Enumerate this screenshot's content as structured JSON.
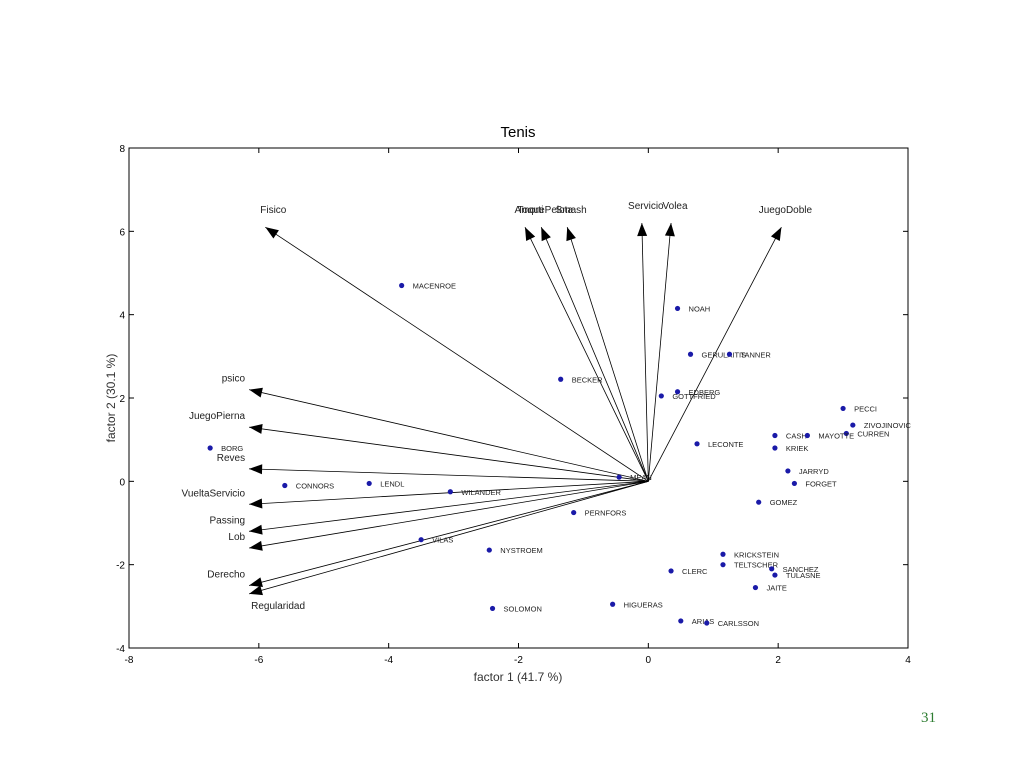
{
  "page_number": "31",
  "colors": {
    "points": "#1a1aa8",
    "arrows": "#000000",
    "page_number": "#2e7d32"
  },
  "chart_data": {
    "type": "scatter",
    "title": "Tenis",
    "xlabel": "factor 1 (41.7 %)",
    "ylabel": "factor 2 (30.1 %)",
    "xlim": [
      -8,
      4
    ],
    "ylim": [
      -4,
      8
    ],
    "xticks": [
      -8,
      -6,
      -4,
      -2,
      0,
      2,
      4
    ],
    "yticks": [
      -4,
      -2,
      0,
      2,
      4,
      6,
      8
    ],
    "grid": false,
    "vectors": [
      {
        "label": "Fisico",
        "x": -5.9,
        "y": 6.1
      },
      {
        "label": "Amorti",
        "x": -1.9,
        "y": 6.1
      },
      {
        "label": "ToquePelota",
        "x": -1.65,
        "y": 6.1
      },
      {
        "label": "Smash",
        "x": -1.25,
        "y": 6.1
      },
      {
        "label": "Servicio",
        "x": -0.1,
        "y": 6.2
      },
      {
        "label": "Volea",
        "x": 0.35,
        "y": 6.2
      },
      {
        "label": "JuegoDoble",
        "x": 2.05,
        "y": 6.1
      },
      {
        "label": "psico",
        "x": -6.15,
        "y": 2.2
      },
      {
        "label": "JuegoPierna",
        "x": -6.15,
        "y": 1.3
      },
      {
        "label": "Reves",
        "x": -6.15,
        "y": 0.3
      },
      {
        "label": "VueltaServicio",
        "x": -6.15,
        "y": -0.55
      },
      {
        "label": "Passing",
        "x": -6.15,
        "y": -1.2
      },
      {
        "label": "Lob",
        "x": -6.15,
        "y": -1.6
      },
      {
        "label": "Derecho",
        "x": -6.15,
        "y": -2.5
      },
      {
        "label": "Regularidad",
        "x": -6.15,
        "y": -2.7
      }
    ],
    "points": [
      {
        "label": "MACENROE",
        "x": -3.8,
        "y": 4.7
      },
      {
        "label": "NOAH",
        "x": 0.45,
        "y": 4.15
      },
      {
        "label": "GERULAITIS",
        "x": 0.65,
        "y": 3.05
      },
      {
        "label": "TANNER",
        "x": 1.25,
        "y": 3.05
      },
      {
        "label": "BECKER",
        "x": -1.35,
        "y": 2.45
      },
      {
        "label": "EDBERG",
        "x": 0.45,
        "y": 2.15
      },
      {
        "label": "GOTTFRIED",
        "x": 0.2,
        "y": 2.05
      },
      {
        "label": "PECCI",
        "x": 3.0,
        "y": 1.75
      },
      {
        "label": "ZIVOJINOVIC",
        "x": 3.15,
        "y": 1.35
      },
      {
        "label": "CURREN",
        "x": 3.05,
        "y": 1.15
      },
      {
        "label": "CASH",
        "x": 1.95,
        "y": 1.1
      },
      {
        "label": "MAYOTTE",
        "x": 2.45,
        "y": 1.1
      },
      {
        "label": "KRIEK",
        "x": 1.95,
        "y": 0.8
      },
      {
        "label": "LECONTE",
        "x": 0.75,
        "y": 0.9
      },
      {
        "label": "BORG",
        "x": -6.75,
        "y": 0.8
      },
      {
        "label": "JARRYD",
        "x": 2.15,
        "y": 0.25
      },
      {
        "label": "FORGET",
        "x": 2.25,
        "y": -0.05
      },
      {
        "label": "MEAN",
        "x": -0.45,
        "y": 0.1
      },
      {
        "label": "CONNORS",
        "x": -5.6,
        "y": -0.1
      },
      {
        "label": "LENDL",
        "x": -4.3,
        "y": -0.05
      },
      {
        "label": "WILANDER",
        "x": -3.05,
        "y": -0.25
      },
      {
        "label": "GOMEZ",
        "x": 1.7,
        "y": -0.5
      },
      {
        "label": "PERNFORS",
        "x": -1.15,
        "y": -0.75
      },
      {
        "label": "VILAS",
        "x": -3.5,
        "y": -1.4
      },
      {
        "label": "NYSTROEM",
        "x": -2.45,
        "y": -1.65
      },
      {
        "label": "KRICKSTEIN",
        "x": 1.15,
        "y": -1.75
      },
      {
        "label": "TELTSCHER",
        "x": 1.15,
        "y": -2.0
      },
      {
        "label": "SANCHEZ",
        "x": 1.9,
        "y": -2.1
      },
      {
        "label": "CLERC",
        "x": 0.35,
        "y": -2.15
      },
      {
        "label": "TULASNE",
        "x": 1.95,
        "y": -2.25
      },
      {
        "label": "JAITE",
        "x": 1.65,
        "y": -2.55
      },
      {
        "label": "SOLOMON",
        "x": -2.4,
        "y": -3.05
      },
      {
        "label": "HIGUERAS",
        "x": -0.55,
        "y": -2.95
      },
      {
        "label": "ARIAS",
        "x": 0.5,
        "y": -3.35
      },
      {
        "label": "CARLSSON",
        "x": 0.9,
        "y": -3.4
      }
    ]
  }
}
